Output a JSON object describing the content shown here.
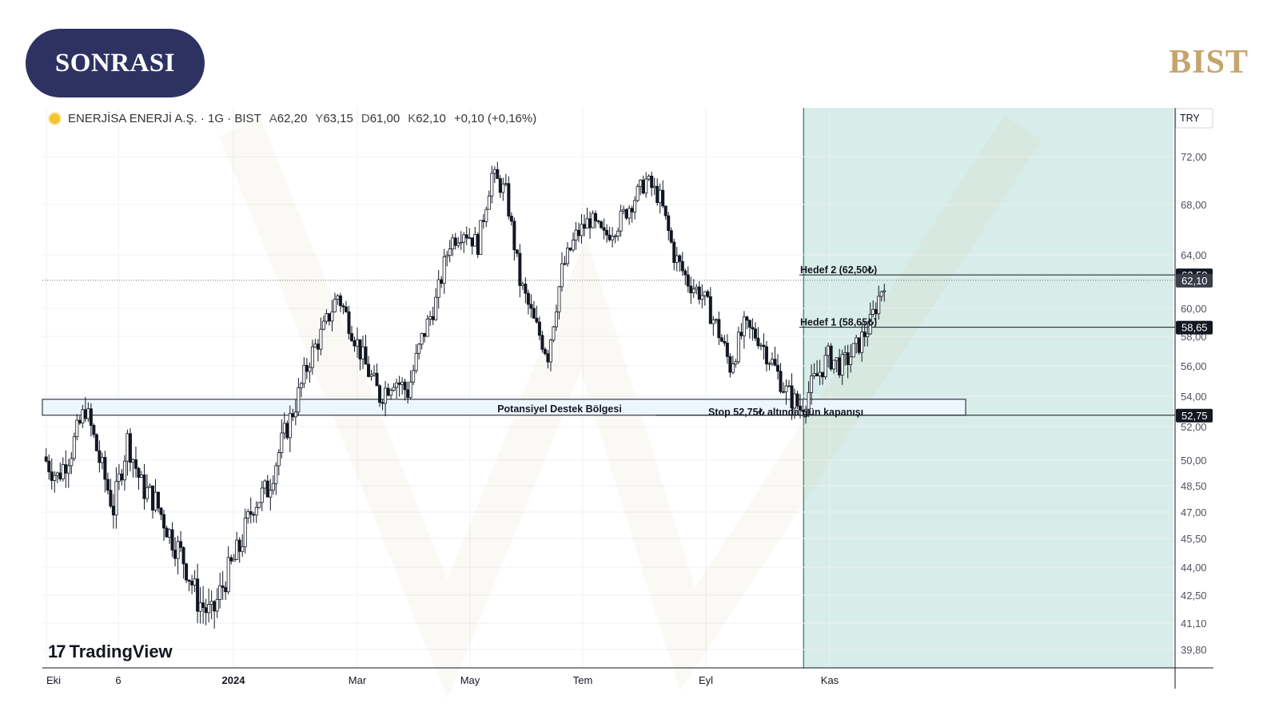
{
  "badge": {
    "label": "SONRASI"
  },
  "brand": {
    "label": "BIST"
  },
  "header": {
    "symbol": "ENERJİSA ENERJİ A.Ş. · 1G · BIST",
    "open_label": "A",
    "open": "62,20",
    "high_label": "Y",
    "high": "63,15",
    "low_label": "D",
    "low": "61,00",
    "close_label": "K",
    "close": "62,10",
    "change": "+0,10 (+0,16%)"
  },
  "watermark": {
    "label": "TradingView"
  },
  "currency": "TRY",
  "colors": {
    "candle": "#131722",
    "zone_fill": "#d8ede9",
    "zone_border": "#4c8c85",
    "support_fill": "#edf6fc",
    "label_bg": "#131722",
    "last_price_bg": "#3a3e4a",
    "grid": "#eef0f3"
  },
  "chart_data": {
    "type": "candlestick",
    "x_ticks": [
      "Eki",
      "6",
      "2024",
      "Mar",
      "May",
      "Tem",
      "Eyl",
      "Kas"
    ],
    "y_ticks": [
      "72,00",
      "68,00",
      "64,00",
      "60,00",
      "58,00",
      "56,00",
      "54,00",
      "52,00",
      "50,00",
      "48,50",
      "47,00",
      "45,50",
      "44,00",
      "42,50",
      "41,10",
      "39,80"
    ],
    "price_labels": [
      {
        "text": "62,50",
        "value": 62.5,
        "style": "dark"
      },
      {
        "text": "62,10",
        "value": 62.1,
        "style": "last"
      },
      {
        "text": "58,65",
        "value": 58.65,
        "style": "dark"
      },
      {
        "text": "52,75",
        "value": 52.75,
        "style": "dark"
      }
    ],
    "annotations": {
      "support_zone": {
        "label": "Potansiyel Destek Bölgesi",
        "from": 52.75,
        "to": 53.8
      },
      "target1": {
        "label": "Hedef 1 (58,65₺)",
        "value": 58.65
      },
      "target2": {
        "label": "Hedef 2 (62,50₺)",
        "value": 62.5
      },
      "stop": {
        "label": "Stop 52,75₺ altında gün kapanışı",
        "value": 52.75
      },
      "last_price": 62.1,
      "highlight_zone_from": "2024-10-15"
    },
    "closes": [
      {
        "d": "2023-10-02",
        "c": 50.2
      },
      {
        "d": "2023-10-09",
        "c": 49.0
      },
      {
        "d": "2023-10-16",
        "c": 50.6
      },
      {
        "d": "2023-10-23",
        "c": 53.2
      },
      {
        "d": "2023-10-30",
        "c": 50.0
      },
      {
        "d": "2023-11-06",
        "c": 47.2
      },
      {
        "d": "2023-11-13",
        "c": 51.2
      },
      {
        "d": "2023-11-20",
        "c": 48.5
      },
      {
        "d": "2023-11-27",
        "c": 47.6
      },
      {
        "d": "2023-12-04",
        "c": 45.8
      },
      {
        "d": "2023-12-11",
        "c": 44.4
      },
      {
        "d": "2023-12-18",
        "c": 42.3
      },
      {
        "d": "2023-12-25",
        "c": 41.4
      },
      {
        "d": "2024-01-01",
        "c": 43.4
      },
      {
        "d": "2024-01-08",
        "c": 45.0
      },
      {
        "d": "2024-01-15",
        "c": 47.5
      },
      {
        "d": "2024-01-22",
        "c": 48.3
      },
      {
        "d": "2024-01-29",
        "c": 51.0
      },
      {
        "d": "2024-02-05",
        "c": 53.5
      },
      {
        "d": "2024-02-12",
        "c": 56.5
      },
      {
        "d": "2024-02-19",
        "c": 58.5
      },
      {
        "d": "2024-02-26",
        "c": 61.0
      },
      {
        "d": "2024-03-04",
        "c": 58.5
      },
      {
        "d": "2024-03-11",
        "c": 56.0
      },
      {
        "d": "2024-03-18",
        "c": 54.0
      },
      {
        "d": "2024-03-25",
        "c": 55.2
      },
      {
        "d": "2024-04-01",
        "c": 54.3
      },
      {
        "d": "2024-04-08",
        "c": 57.8
      },
      {
        "d": "2024-04-15",
        "c": 60.5
      },
      {
        "d": "2024-04-22",
        "c": 65.0
      },
      {
        "d": "2024-04-29",
        "c": 66.0
      },
      {
        "d": "2024-05-06",
        "c": 64.8
      },
      {
        "d": "2024-05-13",
        "c": 70.5
      },
      {
        "d": "2024-05-20",
        "c": 69.0
      },
      {
        "d": "2024-05-27",
        "c": 62.0
      },
      {
        "d": "2024-06-03",
        "c": 59.0
      },
      {
        "d": "2024-06-10",
        "c": 56.8
      },
      {
        "d": "2024-06-17",
        "c": 62.8
      },
      {
        "d": "2024-06-24",
        "c": 65.5
      },
      {
        "d": "2024-07-01",
        "c": 66.8
      },
      {
        "d": "2024-07-08",
        "c": 65.4
      },
      {
        "d": "2024-07-15",
        "c": 66.5
      },
      {
        "d": "2024-07-22",
        "c": 68.2
      },
      {
        "d": "2024-07-29",
        "c": 70.0
      },
      {
        "d": "2024-08-05",
        "c": 68.5
      },
      {
        "d": "2024-08-12",
        "c": 64.0
      },
      {
        "d": "2024-08-19",
        "c": 62.0
      },
      {
        "d": "2024-08-26",
        "c": 61.0
      },
      {
        "d": "2024-09-02",
        "c": 58.8
      },
      {
        "d": "2024-09-09",
        "c": 56.0
      },
      {
        "d": "2024-09-16",
        "c": 58.6
      },
      {
        "d": "2024-09-23",
        "c": 58.0
      },
      {
        "d": "2024-09-30",
        "c": 56.2
      },
      {
        "d": "2024-10-07",
        "c": 54.3
      },
      {
        "d": "2024-10-14",
        "c": 53.2
      },
      {
        "d": "2024-10-21",
        "c": 55.0
      },
      {
        "d": "2024-10-28",
        "c": 56.6
      },
      {
        "d": "2024-11-04",
        "c": 56.0
      },
      {
        "d": "2024-11-11",
        "c": 57.2
      },
      {
        "d": "2024-11-18",
        "c": 58.9
      },
      {
        "d": "2024-11-25",
        "c": 62.1
      }
    ]
  }
}
